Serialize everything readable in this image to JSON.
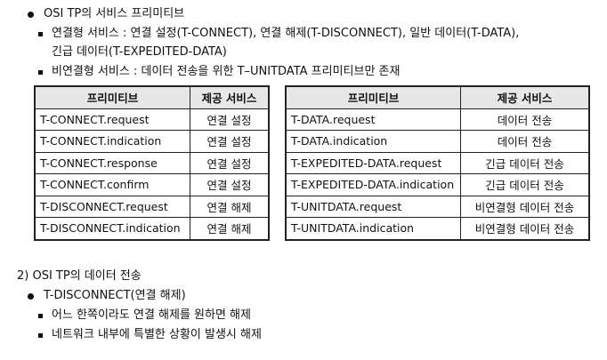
{
  "section1": {
    "heading": "OSI TP의 서비스 프리미티브",
    "bullet1_line1": "연결형 서비스 : 연결 설정(T-CONNECT), 연결 해제(T-DISCONNECT), 일반 데이터(T-DATA),",
    "bullet1_line2": "긴급 데이터(T-EXPEDITED-DATA)",
    "bullet2": "비연결형 서비스 : 데이터 전송을 위한 T–UNITDATA 프리미티브만 존재"
  },
  "table_left": {
    "headers": [
      "프리미티브",
      "제공 서비스"
    ],
    "rows": [
      [
        "T-CONNECT.request",
        "연결 설정"
      ],
      [
        "T-CONNECT.indication",
        "연결 설정"
      ],
      [
        "T-CONNECT.response",
        "연결 설정"
      ],
      [
        "T-CONNECT.confirm",
        "연결 설정"
      ],
      [
        "T-DISCONNECT.request",
        "연결 해제"
      ],
      [
        "T-DISCONNECT.indication",
        "연결 해제"
      ]
    ]
  },
  "table_right": {
    "headers": [
      "프리미티브",
      "제공 서비스"
    ],
    "rows": [
      [
        "T-DATA.request",
        "데이터 전송"
      ],
      [
        "T-DATA.indication",
        "데이터 전송"
      ],
      [
        "T-EXPEDITED-DATA.request",
        "긴급 데이터 전송"
      ],
      [
        "T-EXPEDITED-DATA.indication",
        "긴급 데이터 전송"
      ],
      [
        "T-UNITDATA.request",
        "비연결형 데이터 전송"
      ],
      [
        "T-UNITDATA.indication",
        "비연결형 데이터 전송"
      ]
    ]
  },
  "section2": {
    "heading": "2) OSI TP의 데이터 전송",
    "sub_heading": "T-DISCONNECT(연결 해제)",
    "bullet1": "어느 한쪽이라도 연결 해제를 원하면 해제",
    "bullet2": "네트워크 내부에 특별한 상황이 발생시 해제"
  }
}
